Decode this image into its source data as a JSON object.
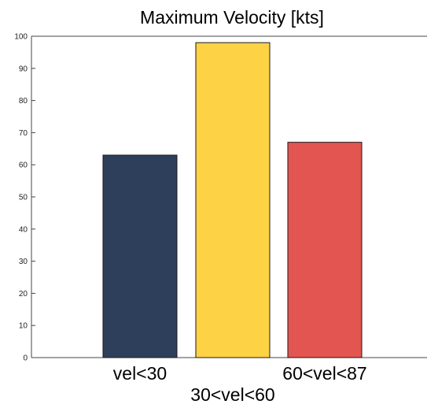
{
  "chart_data": {
    "type": "bar",
    "title": "Maximum Velocity [kts]",
    "xlabel": "",
    "ylabel": "",
    "categories": [
      "vel<30",
      "30<vel<60",
      "60<vel<87"
    ],
    "values": [
      63,
      98,
      67
    ],
    "colors": [
      "#2e3f5b",
      "#fdd245",
      "#e35551"
    ],
    "ylim": [
      0,
      100
    ],
    "yticks": [
      0,
      10,
      20,
      30,
      40,
      50,
      60,
      70,
      80,
      90,
      100
    ],
    "grid": false,
    "legend": "none"
  }
}
